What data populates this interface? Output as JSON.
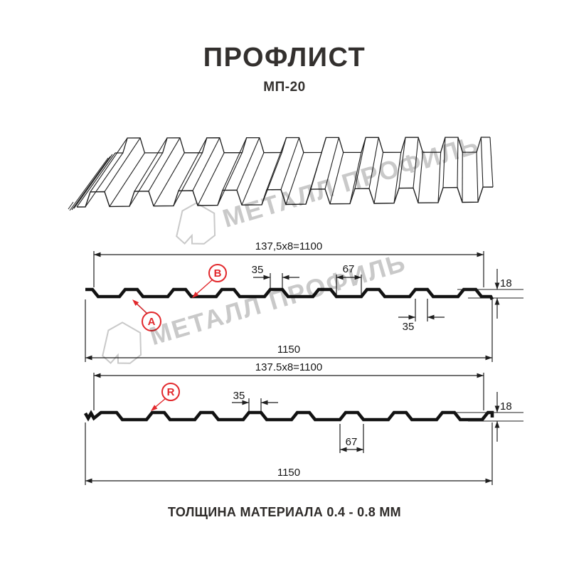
{
  "page": {
    "title": "ПРОФЛИСТ",
    "subtitle": "МП-20",
    "footer": "ТОЛЩИНА МАТЕРИАЛА 0.4 - 0.8 ММ"
  },
  "watermark": {
    "brand": "МЕТАЛЛ ПРОФИЛЬ"
  },
  "colors": {
    "accent_red": "#e2282c",
    "line": "#1f1f1f",
    "profile_stroke": "#121212",
    "watermark_gray": "#c9c9c9",
    "heading": "#33302e"
  },
  "diagram_top": {
    "module_dim": "137,5x8=1100",
    "overall_dim": "1150",
    "rib_top_dim": "35",
    "rib_base_dim": "67",
    "height_dim": "18",
    "underside_dim": "35",
    "label_a": "A",
    "label_b": "B"
  },
  "diagram_bottom": {
    "module_dim": "137.5x8=1100",
    "overall_dim": "1150",
    "rib_top_dim": "35",
    "rib_base_dim": "67",
    "height_dim": "18",
    "label_r": "R"
  }
}
